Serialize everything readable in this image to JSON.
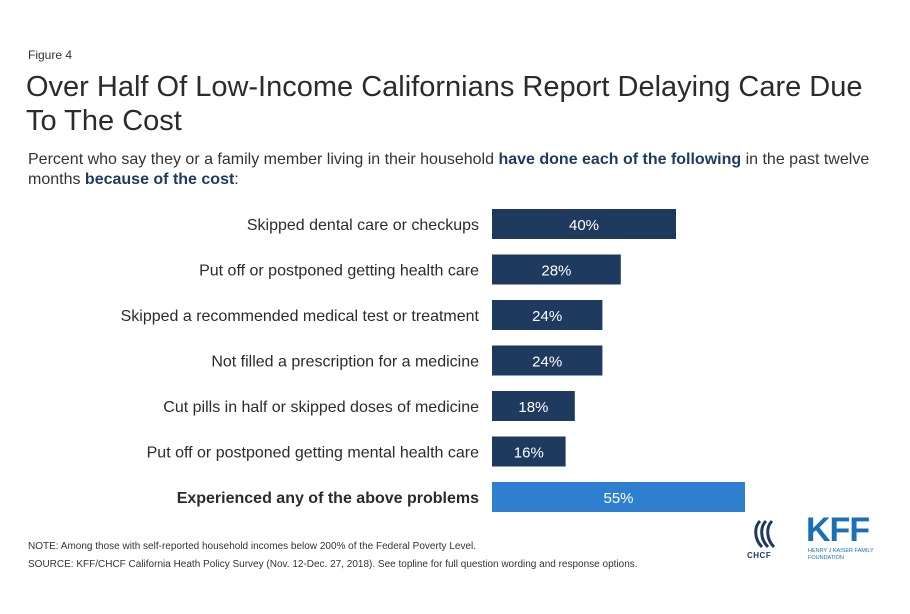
{
  "figure_label": "Figure 4",
  "title": "Over Half Of Low-Income Californians Report Delaying Care Due To The Cost",
  "subtitle": {
    "part1": "Percent who say they or a family member living in their household ",
    "highlight1": "have done each of the following",
    "part2": " in the past twelve months ",
    "highlight2": "because of the cost",
    "part3": ":"
  },
  "colors": {
    "bar_primary": "#1f3a5f",
    "bar_highlight": "#2e7fd0",
    "bar_text": "#ffffff"
  },
  "chart_data": {
    "type": "bar",
    "orientation": "horizontal",
    "categories": [
      "Skipped dental care or checkups",
      "Put off or postponed getting health care",
      "Skipped a recommended medical test or treatment",
      "Not filled a prescription for a medicine",
      "Cut pills in half or skipped doses of medicine",
      "Put off or postponed getting mental health care",
      "Experienced any of the above problems"
    ],
    "values": [
      40,
      28,
      24,
      24,
      18,
      16,
      55
    ],
    "value_labels": [
      "40%",
      "28%",
      "24%",
      "24%",
      "18%",
      "16%",
      "55%"
    ],
    "highlighted_index": 6,
    "unit": "%"
  },
  "footer": {
    "note": "NOTE: Among those with self-reported household incomes below 200% of the Federal Poverty Level.",
    "source": "SOURCE: KFF/CHCF California Heath Policy Survey (Nov. 12-Dec. 27, 2018). See topline for full question wording and response options."
  },
  "logos": {
    "chcf": "CHCF",
    "kff": "KFF",
    "kff_sub": "Henry J Kaiser Family Foundation"
  }
}
